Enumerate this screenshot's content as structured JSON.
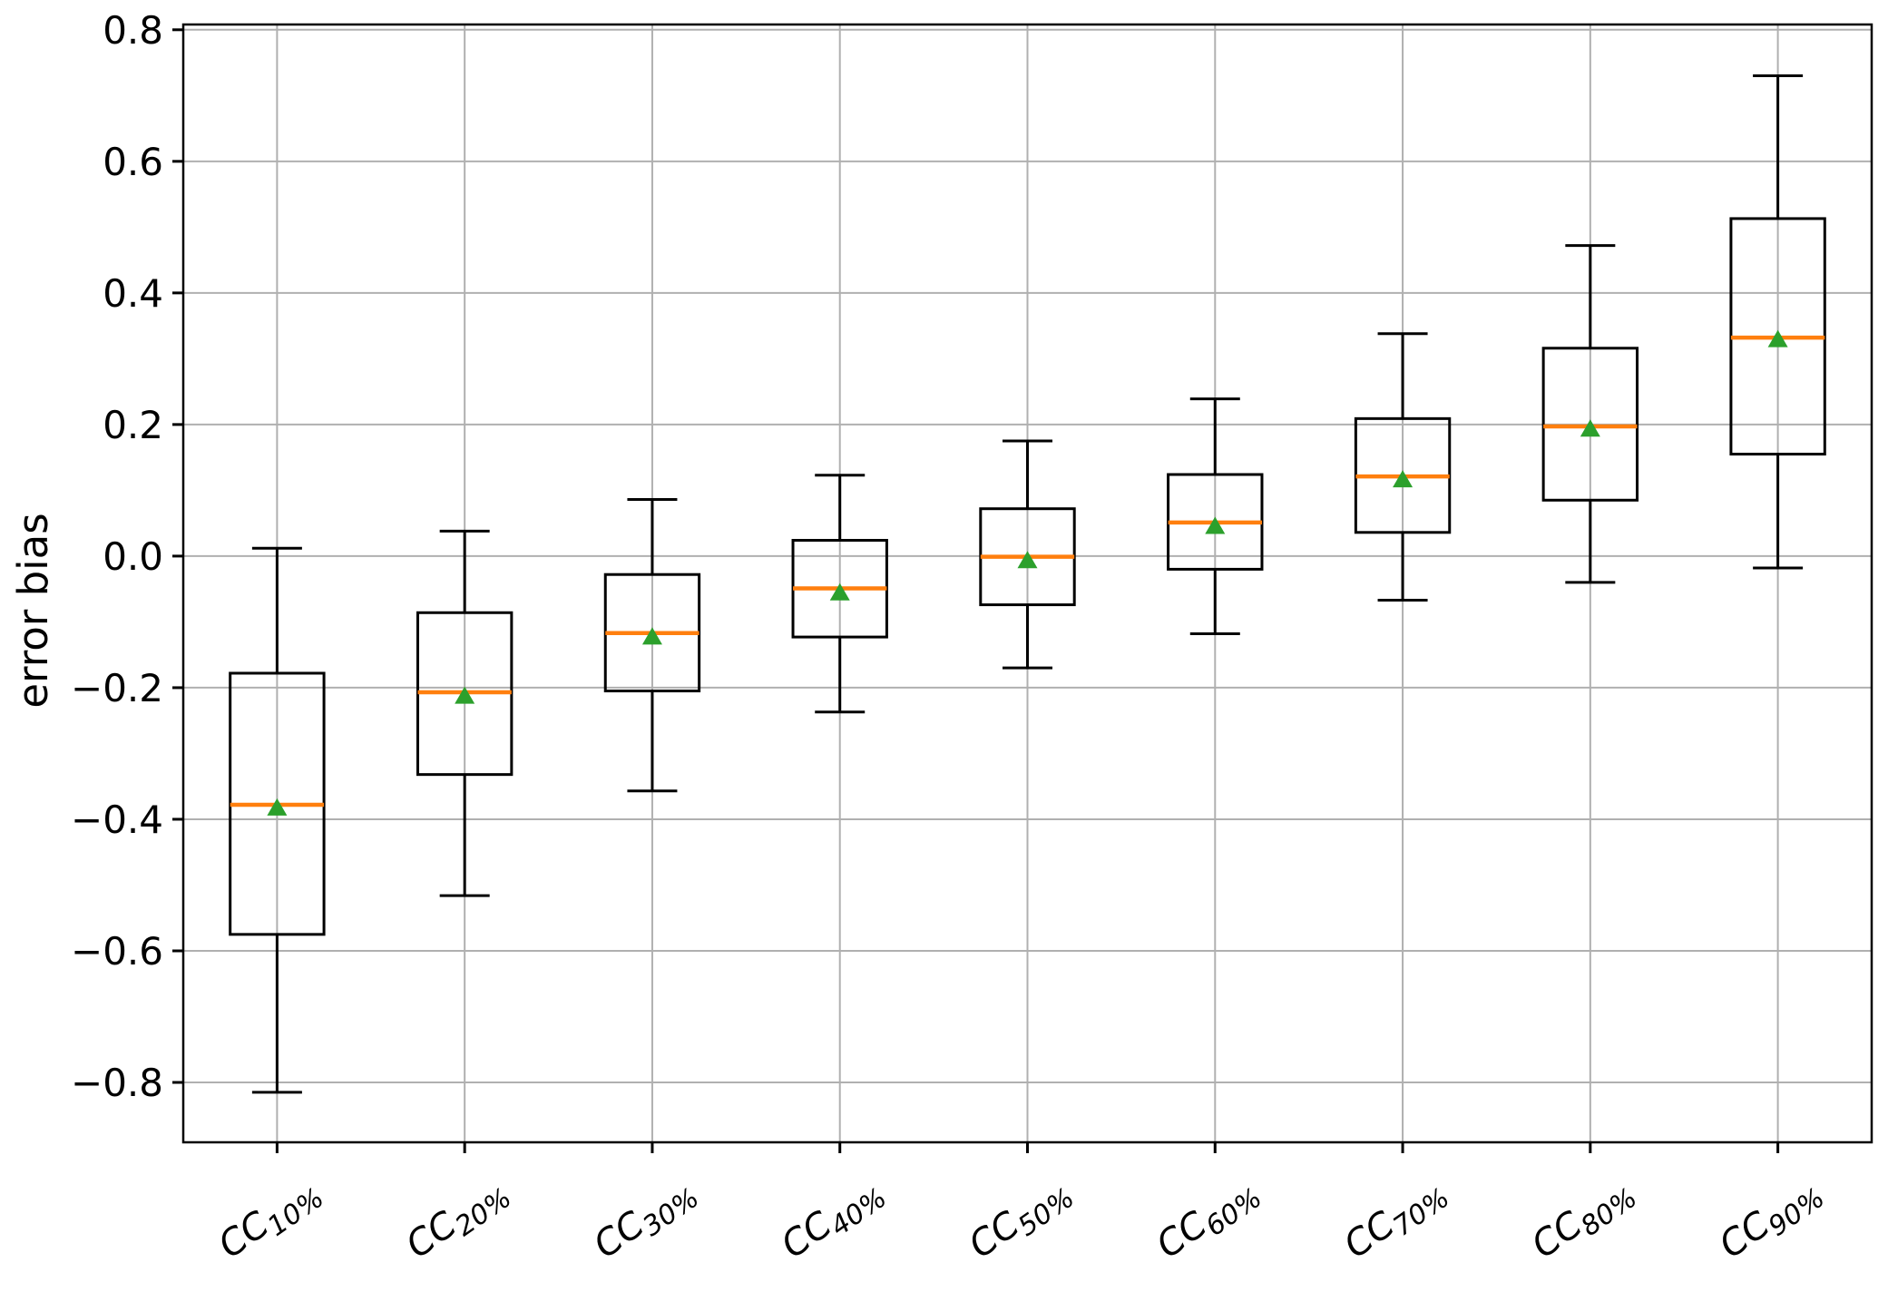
{
  "figure": {
    "background": "#ffffff"
  },
  "chart_data": {
    "type": "boxplot",
    "title": "",
    "xlabel": "",
    "ylabel": "error bias",
    "grid": true,
    "ylim": [
      -0.891,
      0.808
    ],
    "yticks": [
      {
        "value": -0.8,
        "label": "−0.8"
      },
      {
        "value": -0.6,
        "label": "−0.6"
      },
      {
        "value": -0.4,
        "label": "−0.4"
      },
      {
        "value": -0.2,
        "label": "−0.2"
      },
      {
        "value": 0.0,
        "label": "0.0"
      },
      {
        "value": 0.2,
        "label": "0.2"
      },
      {
        "value": 0.4,
        "label": "0.4"
      },
      {
        "value": 0.6,
        "label": "0.6"
      },
      {
        "value": 0.8,
        "label": "0.8"
      }
    ],
    "categories": [
      "CC10%",
      "CC20%",
      "CC30%",
      "CC40%",
      "CC50%",
      "CC60%",
      "CC70%",
      "CC80%",
      "CC90%"
    ],
    "series": [
      {
        "label_base": "CC",
        "label_subscript": "10%",
        "whisker_low": -0.815,
        "q1": -0.575,
        "median": -0.378,
        "mean": -0.382,
        "q3": -0.178,
        "whisker_high": 0.012
      },
      {
        "label_base": "CC",
        "label_subscript": "20%",
        "whisker_low": -0.516,
        "q1": -0.332,
        "median": -0.207,
        "mean": -0.212,
        "q3": -0.086,
        "whisker_high": 0.038
      },
      {
        "label_base": "CC",
        "label_subscript": "30%",
        "whisker_low": -0.357,
        "q1": -0.205,
        "median": -0.117,
        "mean": -0.122,
        "q3": -0.028,
        "whisker_high": 0.086
      },
      {
        "label_base": "CC",
        "label_subscript": "40%",
        "whisker_low": -0.237,
        "q1": -0.123,
        "median": -0.049,
        "mean": -0.055,
        "q3": 0.024,
        "whisker_high": 0.123
      },
      {
        "label_base": "CC",
        "label_subscript": "50%",
        "whisker_low": -0.17,
        "q1": -0.074,
        "median": -0.001,
        "mean": -0.006,
        "q3": 0.072,
        "whisker_high": 0.175
      },
      {
        "label_base": "CC",
        "label_subscript": "60%",
        "whisker_low": -0.118,
        "q1": -0.02,
        "median": 0.051,
        "mean": 0.046,
        "q3": 0.124,
        "whisker_high": 0.239
      },
      {
        "label_base": "CC",
        "label_subscript": "70%",
        "whisker_low": -0.067,
        "q1": 0.036,
        "median": 0.121,
        "mean": 0.117,
        "q3": 0.209,
        "whisker_high": 0.338
      },
      {
        "label_base": "CC",
        "label_subscript": "80%",
        "whisker_low": -0.04,
        "q1": 0.085,
        "median": 0.197,
        "mean": 0.194,
        "q3": 0.316,
        "whisker_high": 0.472
      },
      {
        "label_base": "CC",
        "label_subscript": "90%",
        "whisker_low": -0.018,
        "q1": 0.155,
        "median": 0.332,
        "mean": 0.33,
        "q3": 0.513,
        "whisker_high": 0.73
      }
    ],
    "colors": {
      "median": "#ff7f0e",
      "mean": "#2ca02c",
      "box": "#000000",
      "whisker": "#000000",
      "grid": "#b0b0b0",
      "frame": "#000000",
      "tick_text": "#000000"
    }
  }
}
